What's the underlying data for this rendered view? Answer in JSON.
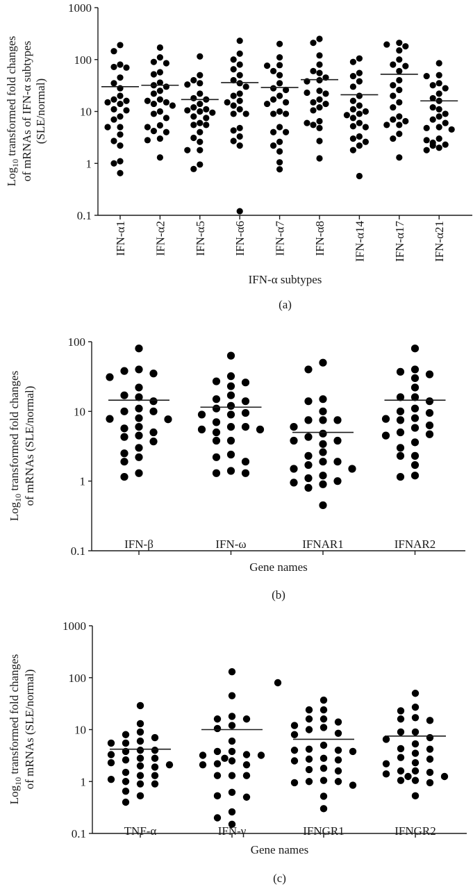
{
  "chart_data": [
    {
      "type": "scatter",
      "panel_label": "(a)",
      "ylabel": {
        "prefix": "Log",
        "sub": "10",
        "lines": [
          " transformed fold changes",
          "of mRNAs of IFN-α subtypes",
          "(SLE/normal)"
        ]
      },
      "xlabel": "IFN-α subtypes",
      "yscale": "log",
      "ylim": [
        0.1,
        1000
      ],
      "yticks": [
        "1000",
        "100",
        "10",
        "1",
        "0.1"
      ],
      "categories": [
        "IFN-α1",
        "IFN-α2",
        "IFN-α5",
        "IFN-α6",
        "IFN-α7",
        "IFN-α8",
        "IFN-α14",
        "IFN-α17",
        "IFN-α21"
      ],
      "means": [
        30,
        32,
        17,
        36,
        29,
        41,
        21,
        52,
        16
      ],
      "values": [
        [
          190,
          145,
          80,
          72,
          70,
          45,
          35,
          28,
          20,
          17,
          16,
          15,
          14,
          11,
          10.5,
          8,
          7,
          5,
          5,
          3.6,
          2.7,
          2.2,
          1.1,
          1.0,
          0.65
        ],
        [
          170,
          110,
          90,
          85,
          57,
          52,
          36,
          32,
          30,
          25,
          22,
          17,
          16,
          15,
          14,
          13,
          10,
          9,
          7.5,
          5.4,
          5,
          4.2,
          4,
          3,
          2.8,
          1.3
        ],
        [
          115,
          50,
          40,
          35,
          33,
          22,
          18,
          17,
          14,
          12,
          11,
          10.5,
          10,
          9.5,
          8,
          7.5,
          6,
          5.5,
          5.5,
          4,
          3.1,
          2.6,
          1.8,
          1.8,
          0.95,
          0.78
        ],
        [
          230,
          130,
          100,
          80,
          65,
          50,
          40,
          35,
          30,
          22,
          20,
          16,
          15,
          13,
          11,
          9,
          9,
          4.8,
          4.3,
          3.3,
          2.7,
          2.2,
          0.12
        ],
        [
          200,
          110,
          78,
          76,
          60,
          50,
          35,
          28,
          26,
          20,
          17,
          15,
          14,
          10,
          9,
          9,
          5,
          4,
          4,
          2.6,
          2.2,
          1.7,
          1.05,
          0.77
        ],
        [
          250,
          210,
          120,
          80,
          60,
          55,
          45,
          40,
          38,
          25,
          23,
          22,
          17,
          15,
          14,
          12,
          10.5,
          6.5,
          6,
          5.5,
          4.8,
          2.7,
          1.25
        ],
        [
          105,
          90,
          55,
          48,
          38,
          30,
          20,
          16,
          13,
          11,
          10,
          9,
          8.5,
          7.5,
          6,
          5.2,
          5,
          3.3,
          3,
          2.6,
          2.2,
          1.8,
          0.57
        ],
        [
          210,
          195,
          180,
          150,
          100,
          80,
          75,
          60,
          40,
          32,
          26,
          20,
          15,
          12,
          8,
          7,
          6.5,
          5.5,
          5.5,
          3.7,
          3,
          1.3
        ],
        [
          85,
          50,
          48,
          35,
          32,
          28,
          22,
          18,
          16,
          12,
          11,
          9,
          8,
          7,
          6,
          5,
          4.8,
          4.5,
          3,
          2.8,
          2.5,
          2.3,
          2.2,
          2,
          1.8
        ]
      ]
    },
    {
      "type": "scatter",
      "panel_label": "(b)",
      "ylabel": {
        "prefix": "Log",
        "sub": "10",
        "lines": [
          " transformed fold changes",
          "of mRNAs (SLE/normal)"
        ]
      },
      "xlabel": "Gene names",
      "yscale": "log",
      "ylim": [
        0.1,
        100
      ],
      "yticks": [
        "100",
        "10",
        "1",
        "0.1"
      ],
      "categories": [
        "IFN-β",
        "IFN-ω",
        "IFNAR1",
        "IFNAR2"
      ],
      "means": [
        14.5,
        11.5,
        5,
        14.5
      ],
      "values": [
        [
          80,
          40,
          38,
          35,
          31,
          22,
          17,
          16,
          14,
          11,
          10,
          10,
          8,
          7.8,
          7.7,
          6,
          5.7,
          5,
          4.5,
          4.3,
          3.7,
          3,
          2.5,
          2.2,
          1.9,
          1.3,
          1.15
        ],
        [
          63,
          32,
          27,
          26,
          23,
          17,
          15,
          14,
          12,
          11,
          9.5,
          9,
          9,
          7,
          6,
          6,
          5.5,
          5.5,
          5,
          3.8,
          3.8,
          2.4,
          2.2,
          1.9,
          1.4,
          1.3,
          1.3
        ],
        [
          50,
          40,
          15,
          14,
          10,
          7.5,
          7.5,
          7.5,
          6,
          4.8,
          4.3,
          3.8,
          3.8,
          3.4,
          2.6,
          2.3,
          1.9,
          1.9,
          1.7,
          1.5,
          1.5,
          1.2,
          1.1,
          1.0,
          0.95,
          0.9,
          0.8,
          0.45
        ],
        [
          80,
          40,
          37,
          34,
          30,
          22,
          16,
          16,
          14,
          11,
          10,
          9.5,
          8,
          7.8,
          7.5,
          6.3,
          5.8,
          5,
          4.7,
          4.5,
          3.6,
          3,
          2.3,
          2.3,
          1.7,
          1.2,
          1.15
        ]
      ]
    },
    {
      "type": "scatter",
      "panel_label": "(c)",
      "ylabel": {
        "prefix": "Log",
        "sub": "10",
        "lines": [
          " transformed fold changes",
          "of mRNAs (SLE/normal)"
        ]
      },
      "xlabel": "Gene names",
      "yscale": "log",
      "ylim": [
        0.1,
        1000
      ],
      "yticks": [
        "1000",
        "100",
        "10",
        "1",
        "0.1"
      ],
      "categories": [
        "TNF-α",
        "IFN-γ",
        "IFNGR1",
        "IFNGR2"
      ],
      "means": [
        4.2,
        10,
        6.5,
        7.5
      ],
      "values": [
        [
          29,
          13,
          9,
          8,
          7,
          6,
          5.5,
          5.5,
          4,
          4,
          3.8,
          3.3,
          2.8,
          2.8,
          2.6,
          2.3,
          2.1,
          2,
          1.9,
          1.5,
          1.3,
          1.3,
          1.1,
          1,
          0.9,
          0.9,
          0.65,
          0.53,
          0.4
        ],
        [
          130,
          45,
          18,
          16,
          16,
          12,
          10.5,
          6,
          3.8,
          3.8,
          3.3,
          3.2,
          3.2,
          2.8,
          2.5,
          2.2,
          2.1,
          2.1,
          1.3,
          1.3,
          1.3,
          0.62,
          0.53,
          0.5,
          0.26,
          0.2,
          0.15
        ],
        [
          37,
          24,
          24,
          16,
          16,
          14,
          12,
          11,
          10,
          8.5,
          8,
          5,
          4.2,
          4,
          4,
          3.8,
          2.8,
          2.7,
          2.6,
          2.5,
          1.8,
          1.7,
          1.6,
          1.05,
          1,
          1,
          0.95,
          0.85,
          0.52,
          0.3
        ],
        [
          50,
          27,
          23,
          17,
          16,
          15,
          9,
          9,
          7,
          6.5,
          5.3,
          4.3,
          4.2,
          3.5,
          2.9,
          2.7,
          2.3,
          2.2,
          1.6,
          1.6,
          1.5,
          1.4,
          1.25,
          1.25,
          1.05,
          1.05,
          0.95,
          0.53
        ]
      ],
      "extra_points": [
        {
          "category_position": 1.5,
          "value": 80
        }
      ]
    }
  ]
}
